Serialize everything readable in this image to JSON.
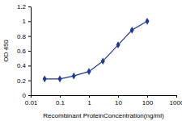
{
  "chart_data": {
    "type": "line",
    "x_label": "Recombinant ProteinConcentration(ng/ml)",
    "y_label": "OD 450",
    "x": [
      0.03,
      0.1,
      0.3,
      1,
      3,
      10,
      30,
      100
    ],
    "values": [
      0.22,
      0.22,
      0.26,
      0.32,
      0.46,
      0.68,
      0.88,
      1.0
    ],
    "color": "#1f3a93",
    "marker": "diamond",
    "log": "x",
    "xlim": [
      0.01,
      1000
    ],
    "xticks": [
      0.01,
      0.1,
      1,
      10,
      100,
      1000
    ],
    "ylim": [
      0,
      1.2
    ],
    "yticks": [
      0,
      0.2,
      0.4,
      0.6,
      0.8,
      1,
      1.2
    ],
    "grid": false
  }
}
